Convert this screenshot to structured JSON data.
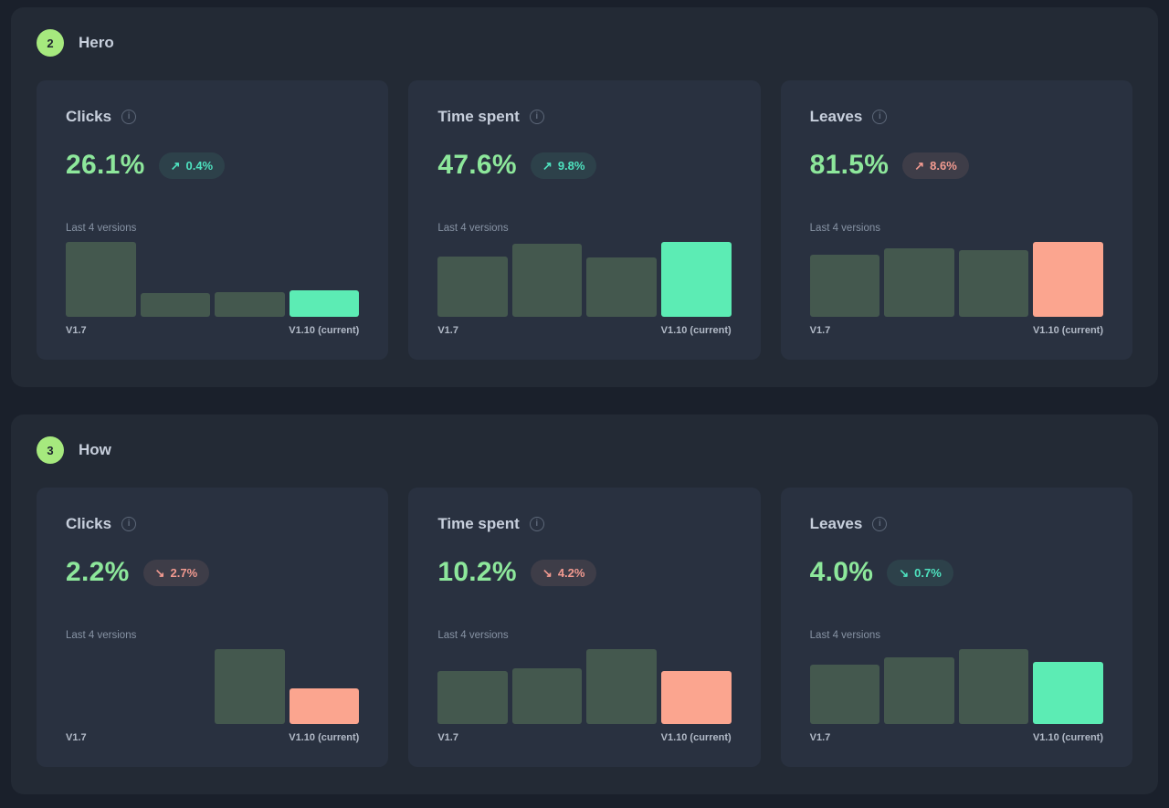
{
  "colors": {
    "page_bg": "#1a202b",
    "section_bg": "#232a35",
    "card_bg": "#293140",
    "badge_bg": "#a6e97e",
    "badge_text": "#1e242f",
    "title_text": "#c7cfdc",
    "value_green": "#8de79b",
    "muted_text": "#8793a4",
    "muted_icon": "#5d6879",
    "axis_label": "#b2bac7",
    "bar_neutral": "#44584e",
    "bar_positive": "#5cecb4",
    "bar_negative": "#fba58f",
    "pill_positive_text": "#4ee2bf",
    "pill_negative_text": "#f29a90",
    "pill_positive_bg": "rgba(93,234,181,0.09)",
    "pill_negative_bg": "rgba(251,164,143,0.10)"
  },
  "icons": {
    "info_glyph": "i",
    "up_arrow": "↗",
    "down_arrow": "↘"
  },
  "chart_meta": {
    "history_label": "Last 4 versions",
    "x_start_label": "V1.7",
    "x_end_label": "V1.10 (current)"
  },
  "sections": [
    {
      "badge": "2",
      "title": "Hero",
      "cards": [
        {
          "title": "Clicks",
          "value": "26.1%",
          "delta_arrow": "↗",
          "delta": "0.4%",
          "delta_direction": "up",
          "delta_sentiment": "positive",
          "bars": [
            100,
            32,
            33,
            35
          ]
        },
        {
          "title": "Time spent",
          "value": "47.6%",
          "delta_arrow": "↗",
          "delta": "9.8%",
          "delta_direction": "up",
          "delta_sentiment": "positive",
          "bars": [
            80,
            97,
            79,
            100
          ]
        },
        {
          "title": "Leaves",
          "value": "81.5%",
          "delta_arrow": "↗",
          "delta": "8.6%",
          "delta_direction": "up",
          "delta_sentiment": "negative",
          "bars": [
            83,
            91,
            89,
            100
          ]
        }
      ]
    },
    {
      "badge": "3",
      "title": "How",
      "cards": [
        {
          "title": "Clicks",
          "value": "2.2%",
          "delta_arrow": "↘",
          "delta": "2.7%",
          "delta_direction": "down",
          "delta_sentiment": "negative",
          "bars": [
            0,
            0,
            100,
            48
          ]
        },
        {
          "title": "Time spent",
          "value": "10.2%",
          "delta_arrow": "↘",
          "delta": "4.2%",
          "delta_direction": "down",
          "delta_sentiment": "negative",
          "bars": [
            71,
            75,
            100,
            71
          ]
        },
        {
          "title": "Leaves",
          "value": "4.0%",
          "delta_arrow": "↘",
          "delta": "0.7%",
          "delta_direction": "down",
          "delta_sentiment": "positive",
          "bars": [
            79,
            89,
            100,
            83
          ]
        }
      ]
    }
  ]
}
